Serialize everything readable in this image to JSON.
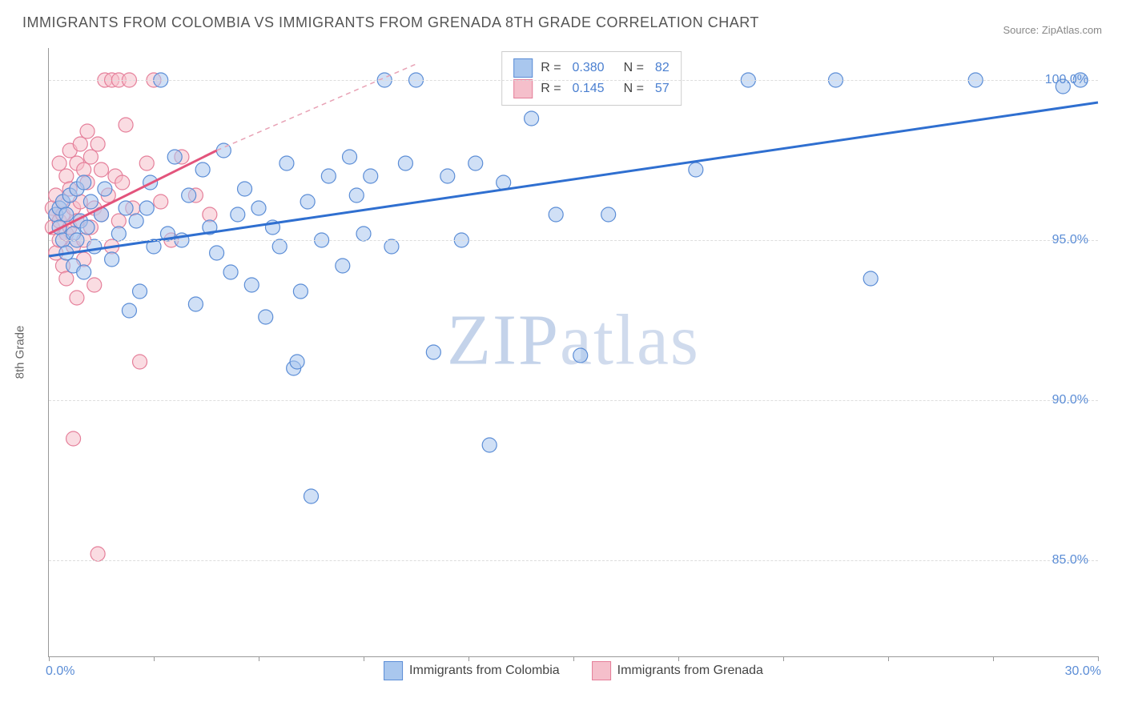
{
  "title": "IMMIGRANTS FROM COLOMBIA VS IMMIGRANTS FROM GRENADA 8TH GRADE CORRELATION CHART",
  "source": "Source: ZipAtlas.com",
  "y_axis_label": "8th Grade",
  "watermark_a": "ZIP",
  "watermark_b": "atlas",
  "chart": {
    "type": "scatter",
    "background_color": "#ffffff",
    "grid_color": "#dddddd",
    "axis_color": "#999999",
    "xlim": [
      0.0,
      30.0
    ],
    "ylim": [
      82.0,
      101.0
    ],
    "x_ticks": [
      0,
      3,
      6,
      9,
      12,
      15,
      18,
      21,
      24,
      27,
      30
    ],
    "x_tick_labels": {
      "min": "0.0%",
      "max": "30.0%"
    },
    "y_ticks": [
      85.0,
      90.0,
      95.0,
      100.0
    ],
    "y_tick_labels": [
      "85.0%",
      "90.0%",
      "95.0%",
      "100.0%"
    ],
    "marker_radius": 9,
    "marker_opacity": 0.55,
    "trend_line_width": 3,
    "series": [
      {
        "name": "Immigrants from Colombia",
        "fill_color": "#a9c7ee",
        "stroke_color": "#5b8dd6",
        "r_value": "0.380",
        "n_value": "82",
        "trend": {
          "x1": 0.0,
          "y1": 94.5,
          "x2": 30.0,
          "y2": 99.3,
          "dash": false,
          "color": "#2f6fd0"
        },
        "trend_ext": null,
        "points": [
          [
            0.2,
            95.8
          ],
          [
            0.3,
            96.0
          ],
          [
            0.3,
            95.4
          ],
          [
            0.4,
            96.2
          ],
          [
            0.4,
            95.0
          ],
          [
            0.5,
            94.6
          ],
          [
            0.5,
            95.8
          ],
          [
            0.6,
            96.4
          ],
          [
            0.7,
            95.2
          ],
          [
            0.7,
            94.2
          ],
          [
            0.8,
            96.6
          ],
          [
            0.8,
            95.0
          ],
          [
            0.9,
            95.6
          ],
          [
            1.0,
            96.8
          ],
          [
            1.0,
            94.0
          ],
          [
            1.1,
            95.4
          ],
          [
            1.2,
            96.2
          ],
          [
            1.3,
            94.8
          ],
          [
            1.5,
            95.8
          ],
          [
            1.6,
            96.6
          ],
          [
            1.8,
            94.4
          ],
          [
            2.0,
            95.2
          ],
          [
            2.2,
            96.0
          ],
          [
            2.3,
            92.8
          ],
          [
            2.5,
            95.6
          ],
          [
            2.6,
            93.4
          ],
          [
            2.8,
            96.0
          ],
          [
            2.9,
            96.8
          ],
          [
            3.0,
            94.8
          ],
          [
            3.2,
            100.0
          ],
          [
            3.4,
            95.2
          ],
          [
            3.6,
            97.6
          ],
          [
            3.8,
            95.0
          ],
          [
            4.0,
            96.4
          ],
          [
            4.2,
            93.0
          ],
          [
            4.4,
            97.2
          ],
          [
            4.6,
            95.4
          ],
          [
            4.8,
            94.6
          ],
          [
            5.0,
            97.8
          ],
          [
            5.2,
            94.0
          ],
          [
            5.4,
            95.8
          ],
          [
            5.6,
            96.6
          ],
          [
            5.8,
            93.6
          ],
          [
            6.0,
            96.0
          ],
          [
            6.2,
            92.6
          ],
          [
            6.4,
            95.4
          ],
          [
            6.6,
            94.8
          ],
          [
            6.8,
            97.4
          ],
          [
            7.0,
            91.0
          ],
          [
            7.1,
            91.2
          ],
          [
            7.2,
            93.4
          ],
          [
            7.4,
            96.2
          ],
          [
            7.5,
            87.0
          ],
          [
            7.8,
            95.0
          ],
          [
            8.0,
            97.0
          ],
          [
            8.4,
            94.2
          ],
          [
            8.6,
            97.6
          ],
          [
            8.8,
            96.4
          ],
          [
            9.0,
            95.2
          ],
          [
            9.2,
            97.0
          ],
          [
            9.6,
            100.0
          ],
          [
            9.8,
            94.8
          ],
          [
            10.2,
            97.4
          ],
          [
            10.5,
            100.0
          ],
          [
            11.0,
            91.5
          ],
          [
            11.4,
            97.0
          ],
          [
            11.8,
            95.0
          ],
          [
            12.2,
            97.4
          ],
          [
            12.6,
            88.6
          ],
          [
            13.0,
            96.8
          ],
          [
            13.8,
            98.8
          ],
          [
            14.5,
            95.8
          ],
          [
            15.2,
            91.4
          ],
          [
            16.0,
            95.8
          ],
          [
            17.0,
            100.0
          ],
          [
            18.5,
            97.2
          ],
          [
            20.0,
            100.0
          ],
          [
            22.5,
            100.0
          ],
          [
            23.5,
            93.8
          ],
          [
            26.5,
            100.0
          ],
          [
            29.0,
            99.8
          ],
          [
            29.5,
            100.0
          ]
        ]
      },
      {
        "name": "Immigrants from Grenada",
        "fill_color": "#f5bfcb",
        "stroke_color": "#e57f9a",
        "r_value": "0.145",
        "n_value": "57",
        "trend": {
          "x1": 0.0,
          "y1": 95.2,
          "x2": 4.8,
          "y2": 97.8,
          "dash": false,
          "color": "#e3547c"
        },
        "trend_ext": {
          "x1": 4.8,
          "y1": 97.8,
          "x2": 10.5,
          "y2": 100.5,
          "dash": true,
          "color": "#e8a2b5"
        },
        "points": [
          [
            0.1,
            95.4
          ],
          [
            0.1,
            96.0
          ],
          [
            0.2,
            95.8
          ],
          [
            0.2,
            94.6
          ],
          [
            0.2,
            96.4
          ],
          [
            0.3,
            95.0
          ],
          [
            0.3,
            97.4
          ],
          [
            0.3,
            95.6
          ],
          [
            0.4,
            94.2
          ],
          [
            0.4,
            96.2
          ],
          [
            0.4,
            95.8
          ],
          [
            0.5,
            97.0
          ],
          [
            0.5,
            95.2
          ],
          [
            0.5,
            93.8
          ],
          [
            0.6,
            96.6
          ],
          [
            0.6,
            95.4
          ],
          [
            0.6,
            97.8
          ],
          [
            0.7,
            94.8
          ],
          [
            0.7,
            96.0
          ],
          [
            0.8,
            95.6
          ],
          [
            0.8,
            97.4
          ],
          [
            0.8,
            93.2
          ],
          [
            0.9,
            96.2
          ],
          [
            0.9,
            98.0
          ],
          [
            1.0,
            95.0
          ],
          [
            1.0,
            97.2
          ],
          [
            1.0,
            94.4
          ],
          [
            1.1,
            96.8
          ],
          [
            1.1,
            98.4
          ],
          [
            1.2,
            95.4
          ],
          [
            1.2,
            97.6
          ],
          [
            1.3,
            96.0
          ],
          [
            1.3,
            93.6
          ],
          [
            1.4,
            98.0
          ],
          [
            1.5,
            95.8
          ],
          [
            1.5,
            97.2
          ],
          [
            1.6,
            100.0
          ],
          [
            1.7,
            96.4
          ],
          [
            1.8,
            94.8
          ],
          [
            1.8,
            100.0
          ],
          [
            1.9,
            97.0
          ],
          [
            2.0,
            95.6
          ],
          [
            2.0,
            100.0
          ],
          [
            2.1,
            96.8
          ],
          [
            2.2,
            98.6
          ],
          [
            2.3,
            100.0
          ],
          [
            2.4,
            96.0
          ],
          [
            2.6,
            91.2
          ],
          [
            2.8,
            97.4
          ],
          [
            3.0,
            100.0
          ],
          [
            3.2,
            96.2
          ],
          [
            3.5,
            95.0
          ],
          [
            3.8,
            97.6
          ],
          [
            4.2,
            96.4
          ],
          [
            4.6,
            95.8
          ],
          [
            0.7,
            88.8
          ],
          [
            1.4,
            85.2
          ]
        ]
      }
    ],
    "legend": {
      "r_label": "R =",
      "n_label": "N ="
    }
  }
}
